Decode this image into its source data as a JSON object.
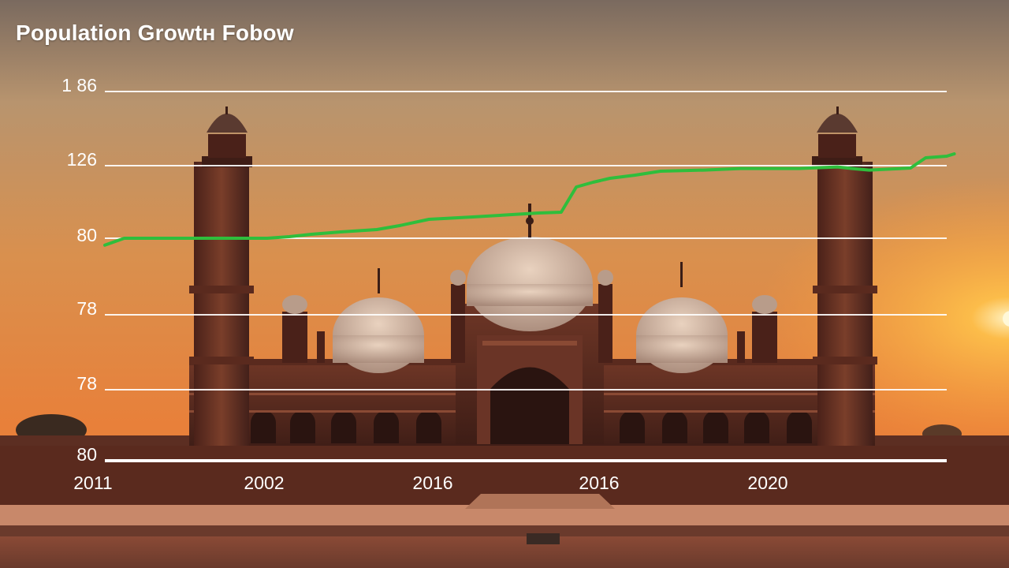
{
  "chart_data": {
    "type": "line",
    "title": "Population Growtн Fobow",
    "y_ticks": [
      "1 86",
      "126",
      "80",
      "78",
      "78",
      "80"
    ],
    "x_ticks": [
      "2011",
      "2002",
      "2016",
      "2016",
      "2020"
    ],
    "grid": true,
    "series": [
      {
        "color": "#2fbe3c",
        "points": [
          [
            0.0,
            75.6
          ],
          [
            0.023,
            80.0
          ],
          [
            0.193,
            80.0
          ],
          [
            0.219,
            81.0
          ],
          [
            0.245,
            82.5
          ],
          [
            0.28,
            84.0
          ],
          [
            0.323,
            85.5
          ],
          [
            0.35,
            88.0
          ],
          [
            0.385,
            92.0
          ],
          [
            0.437,
            93.5
          ],
          [
            0.515,
            96.0
          ],
          [
            0.542,
            96.5
          ],
          [
            0.56,
            112.5
          ],
          [
            0.58,
            115.5
          ],
          [
            0.6,
            118.0
          ],
          [
            0.63,
            120.0
          ],
          [
            0.66,
            122.5
          ],
          [
            0.712,
            123.2
          ],
          [
            0.755,
            124.2
          ],
          [
            0.825,
            124.2
          ],
          [
            0.87,
            125.2
          ],
          [
            0.891,
            124.0
          ],
          [
            0.908,
            123.2
          ],
          [
            0.939,
            124.0
          ],
          [
            0.957,
            124.5
          ],
          [
            0.975,
            131.0
          ],
          [
            1.0,
            132.0
          ],
          [
            1.009,
            133.5
          ]
        ]
      }
    ]
  }
}
